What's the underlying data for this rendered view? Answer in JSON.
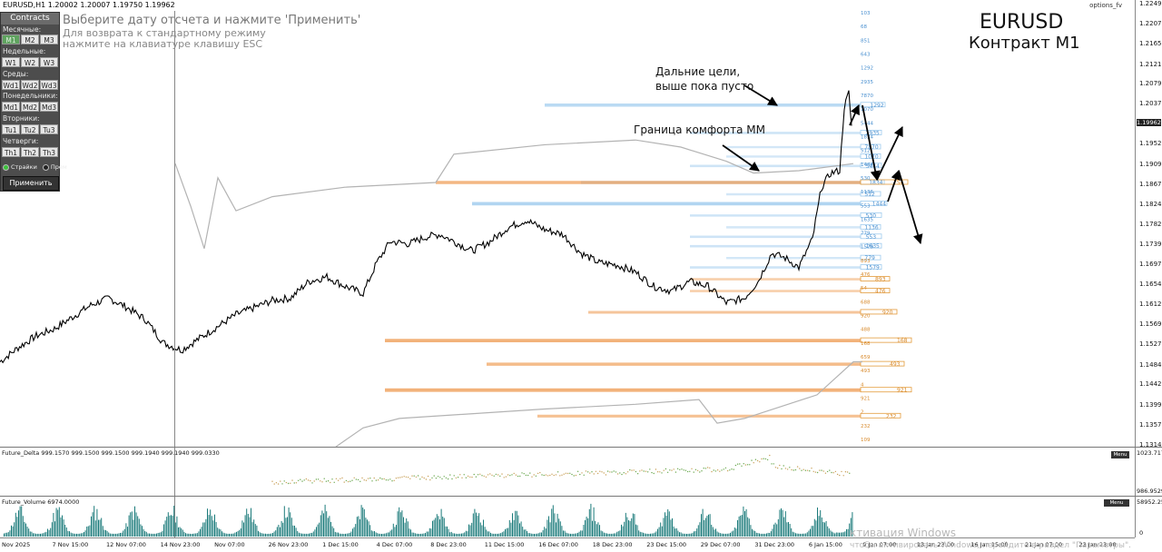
{
  "header": {
    "symbol_line": "EURUSD,H1  1.20002 1.20007 1.19750 1.19962",
    "options_label": "options_fv"
  },
  "panel": {
    "title": "Contracts",
    "monthly_label": "Месячные:",
    "weekly_label": "Недельные:",
    "wed_label": "Среды:",
    "mon_label": "Понедельники:",
    "tue_label": "Вторники:",
    "thu_label": "Четверги:",
    "monthly": [
      "M1",
      "M2",
      "M3"
    ],
    "weekly": [
      "W1",
      "W2",
      "W3"
    ],
    "wed": [
      "Wd1",
      "Wd2",
      "Wd3"
    ],
    "mon": [
      "Md1",
      "Md2",
      "Md3"
    ],
    "tue": [
      "Tu1",
      "Tu2",
      "Tu3"
    ],
    "thu": [
      "Th1",
      "Th2",
      "Th3"
    ],
    "radio_strikes": "Страйки",
    "radio_prem": "Прем",
    "apply": "Применить",
    "active_color": "#5fa35f"
  },
  "instructions": {
    "line1": "Выберите дату отсчета и нажмите 'Применить'",
    "line2": "Для возврата к стандартному режиму",
    "line3": "нажмите на клавиатуре клавишу ESC"
  },
  "titles": {
    "symbol": "EURUSD",
    "contract": "Контракт M1"
  },
  "annotations": {
    "targets_line1": "Дальние цели,",
    "targets_line2": "выше пока пусто",
    "comfort": "Граница комфорта ММ"
  },
  "watermark": {
    "line1": "ктивация Windows",
    "line2": "чтобы активировать Windows, перейдите в раздел \"Параметры\"."
  },
  "chart_data": {
    "type": "line",
    "title": "EURUSD",
    "instrument": "EURUSD,H1",
    "ohlc_last": {
      "open": 1.20002,
      "high": 1.20007,
      "low": 1.1975,
      "close": 1.19962
    },
    "current_price": 1.19962,
    "y_ticks": [
      1.2249,
      1.2207,
      1.2165,
      1.2121,
      1.2079,
      1.2037,
      1.1995,
      1.1952,
      1.1909,
      1.1867,
      1.1824,
      1.1782,
      1.1739,
      1.1697,
      1.1654,
      1.1612,
      1.1569,
      1.1527,
      1.1484,
      1.1442,
      1.1399,
      1.1357,
      1.1314
    ],
    "ylim": [
      1.1314,
      1.2249
    ],
    "x_ticks": [
      "Nov 2025",
      "7 Nov 15:00",
      "12 Nov 07:00",
      "14 Nov 23:00",
      "Nov 07:00",
      "26 Nov 23:00",
      "1 Dec 15:00",
      "4 Dec 07:00",
      "8 Dec 23:00",
      "11 Dec 15:00",
      "16 Dec 07:00",
      "18 Dec 23:00",
      "23 Dec 15:00",
      "29 Dec 07:00",
      "31 Dec 23:00",
      "6 Jan 15:00",
      "9 Jan 07:00",
      "13 Jan 23:00",
      "16 Jan 15:00",
      "21 Jan 07:00",
      "23 Jan 23:00"
    ],
    "price_path": [
      [
        0,
        1.149
      ],
      [
        20,
        1.152
      ],
      [
        40,
        1.1545
      ],
      [
        60,
        1.156
      ],
      [
        80,
        1.1585
      ],
      [
        100,
        1.161
      ],
      [
        120,
        1.1625
      ],
      [
        140,
        1.1605
      ],
      [
        160,
        1.158
      ],
      [
        180,
        1.153
      ],
      [
        200,
        1.1515
      ],
      [
        220,
        1.154
      ],
      [
        240,
        1.1565
      ],
      [
        260,
        1.159
      ],
      [
        280,
        1.1605
      ],
      [
        300,
        1.162
      ],
      [
        320,
        1.1625
      ],
      [
        340,
        1.166
      ],
      [
        360,
        1.167
      ],
      [
        380,
        1.165
      ],
      [
        400,
        1.1635
      ],
      [
        415,
        1.17
      ],
      [
        430,
        1.1745
      ],
      [
        450,
        1.174
      ],
      [
        470,
        1.1755
      ],
      [
        485,
        1.176
      ],
      [
        500,
        1.1745
      ],
      [
        520,
        1.1725
      ],
      [
        540,
        1.1745
      ],
      [
        560,
        1.1775
      ],
      [
        580,
        1.179
      ],
      [
        600,
        1.177
      ],
      [
        620,
        1.176
      ],
      [
        640,
        1.172
      ],
      [
        660,
        1.17
      ],
      [
        680,
        1.1695
      ],
      [
        700,
        1.168
      ],
      [
        720,
        1.165
      ],
      [
        740,
        1.164
      ],
      [
        760,
        1.166
      ],
      [
        780,
        1.165
      ],
      [
        800,
        1.1615
      ],
      [
        820,
        1.1625
      ],
      [
        835,
        1.166
      ],
      [
        850,
        1.172
      ],
      [
        865,
        1.171
      ],
      [
        880,
        1.169
      ],
      [
        895,
        1.175
      ],
      [
        905,
        1.186
      ],
      [
        915,
        1.189
      ],
      [
        925,
        1.1895
      ],
      [
        930,
        1.203
      ],
      [
        935,
        1.206
      ],
      [
        938,
        1.199
      ]
    ],
    "comfort_line": [
      [
        193,
        1.191
      ],
      [
        210,
        1.182
      ],
      [
        225,
        1.173
      ],
      [
        240,
        1.188
      ],
      [
        260,
        1.181
      ],
      [
        300,
        1.184
      ],
      [
        380,
        1.186
      ],
      [
        480,
        1.187
      ],
      [
        500,
        1.193
      ],
      [
        600,
        1.195
      ],
      [
        700,
        1.196
      ],
      [
        750,
        1.1945
      ],
      [
        800,
        1.1915
      ],
      [
        830,
        1.189
      ],
      [
        880,
        1.1895
      ],
      [
        940,
        1.191
      ]
    ],
    "lower_line": [
      [
        370,
        1.131
      ],
      [
        400,
        1.135
      ],
      [
        440,
        1.137
      ],
      [
        600,
        1.139
      ],
      [
        700,
        1.14
      ],
      [
        770,
        1.141
      ],
      [
        790,
        1.136
      ],
      [
        820,
        1.137
      ],
      [
        900,
        1.142
      ],
      [
        940,
        1.149
      ],
      [
        950,
        1.149
      ]
    ],
    "call_levels": [
      {
        "price": 1.2034,
        "strength": 0.7,
        "label": "1292"
      },
      {
        "price": 1.1975,
        "strength": 0.3,
        "label": "2935"
      },
      {
        "price": 1.1945,
        "strength": 0.2,
        "label": "7870"
      },
      {
        "price": 1.1925,
        "strength": 0.2,
        "label": "1070"
      },
      {
        "price": 1.1905,
        "strength": 0.3,
        "label": "5444"
      },
      {
        "price": 1.187,
        "strength": 0.6,
        "label": "1834"
      },
      {
        "price": 1.1845,
        "strength": 0.2,
        "label": "512"
      },
      {
        "price": 1.1825,
        "strength": 0.9,
        "label": "1444"
      },
      {
        "price": 1.18,
        "strength": 0.3,
        "label": "530"
      },
      {
        "price": 1.1775,
        "strength": 0.2,
        "label": "1136"
      },
      {
        "price": 1.1755,
        "strength": 0.3,
        "label": "553"
      },
      {
        "price": 1.1735,
        "strength": 0.3,
        "label": "1635"
      },
      {
        "price": 1.171,
        "strength": 0.2,
        "label": "779"
      },
      {
        "price": 1.169,
        "strength": 0.3,
        "label": "1579"
      }
    ],
    "put_levels": [
      {
        "price": 1.187,
        "strength": 0.8,
        "label": "754"
      },
      {
        "price": 1.1665,
        "strength": 0.3,
        "label": "893"
      },
      {
        "price": 1.164,
        "strength": 0.3,
        "label": "476"
      },
      {
        "price": 1.1595,
        "strength": 0.5,
        "label": "920"
      },
      {
        "price": 1.1535,
        "strength": 0.9,
        "label": "168"
      },
      {
        "price": 1.1485,
        "strength": 0.7,
        "label": "493"
      },
      {
        "price": 1.143,
        "strength": 0.9,
        "label": "921"
      },
      {
        "price": 1.1375,
        "strength": 0.6,
        "label": "232"
      }
    ],
    "strike_labels": [
      "103",
      "68",
      "851",
      "643",
      "1292",
      "2935",
      "7870",
      "1070",
      "5444",
      "1834",
      "512",
      "1444",
      "530",
      "1136",
      "553",
      "1635",
      "779",
      "1579",
      "893",
      "476",
      "54",
      "688",
      "920",
      "488",
      "168",
      "659",
      "493",
      "4",
      "921",
      "2",
      "232",
      "109"
    ],
    "indicators": {
      "delta_title": "Future_Delta 999.1570 999.1500 999.1500 999.1940 999.1940 999.0330",
      "delta_max": "1023.7171",
      "delta_min": "986.9529",
      "volume_title": "Future_Volume 6974.0000",
      "volume_max": "58952.25",
      "volume_min": "0",
      "menu_label": "Menu"
    },
    "colors": {
      "price": "#000000",
      "call": "#9ecbee",
      "put": "#f0a05a",
      "volume": "#1a7a7a",
      "delta": "#6aa84f",
      "current_tag": "#222222"
    }
  }
}
